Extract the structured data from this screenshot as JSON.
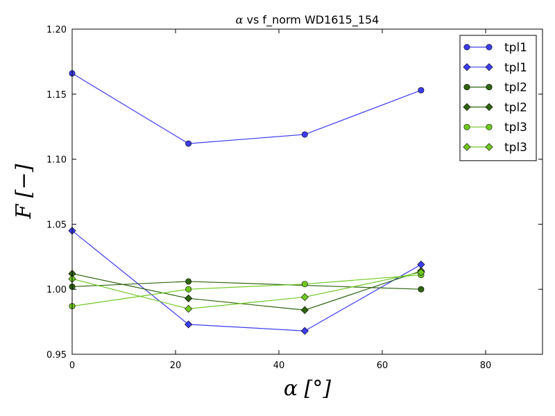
{
  "chart_data": {
    "type": "line",
    "title_prefix": "α",
    "title_suffix": " vs f_norm WD1615_154",
    "xlabel": "α [°]",
    "ylabel": "F [−]",
    "xlim": [
      0,
      91
    ],
    "ylim": [
      0.95,
      1.2
    ],
    "x_ticks": [
      0,
      20,
      40,
      60,
      80
    ],
    "x_tick_labels": [
      "0",
      "20",
      "40",
      "60",
      "80"
    ],
    "y_ticks": [
      0.95,
      1.0,
      1.05,
      1.1,
      1.15,
      1.2
    ],
    "y_tick_labels": [
      "0.95",
      "1.00",
      "1.05",
      "1.10",
      "1.15",
      "1.20"
    ],
    "grid": false,
    "legend_position": "top-right",
    "x": [
      0,
      22.5,
      45,
      67.5
    ],
    "series": [
      {
        "name": "tpl1",
        "marker": "circle",
        "color": "#3c3cf0",
        "values": [
          1.166,
          1.112,
          1.119,
          1.153
        ]
      },
      {
        "name": "tpl1",
        "marker": "diamond",
        "color": "#3c3cf0",
        "values": [
          1.045,
          0.973,
          0.968,
          1.019
        ]
      },
      {
        "name": "tpl2",
        "marker": "circle",
        "color": "#2f6410",
        "values": [
          1.002,
          1.006,
          null,
          1.0
        ]
      },
      {
        "name": "tpl2",
        "marker": "diamond",
        "color": "#2f6410",
        "values": [
          1.012,
          0.993,
          0.984,
          1.014
        ]
      },
      {
        "name": "tpl3",
        "marker": "circle",
        "color": "#6fc820",
        "values": [
          0.987,
          1.0,
          1.004,
          1.011
        ]
      },
      {
        "name": "tpl3",
        "marker": "diamond",
        "color": "#6fc820",
        "values": [
          1.008,
          0.985,
          0.994,
          1.013
        ]
      }
    ]
  }
}
